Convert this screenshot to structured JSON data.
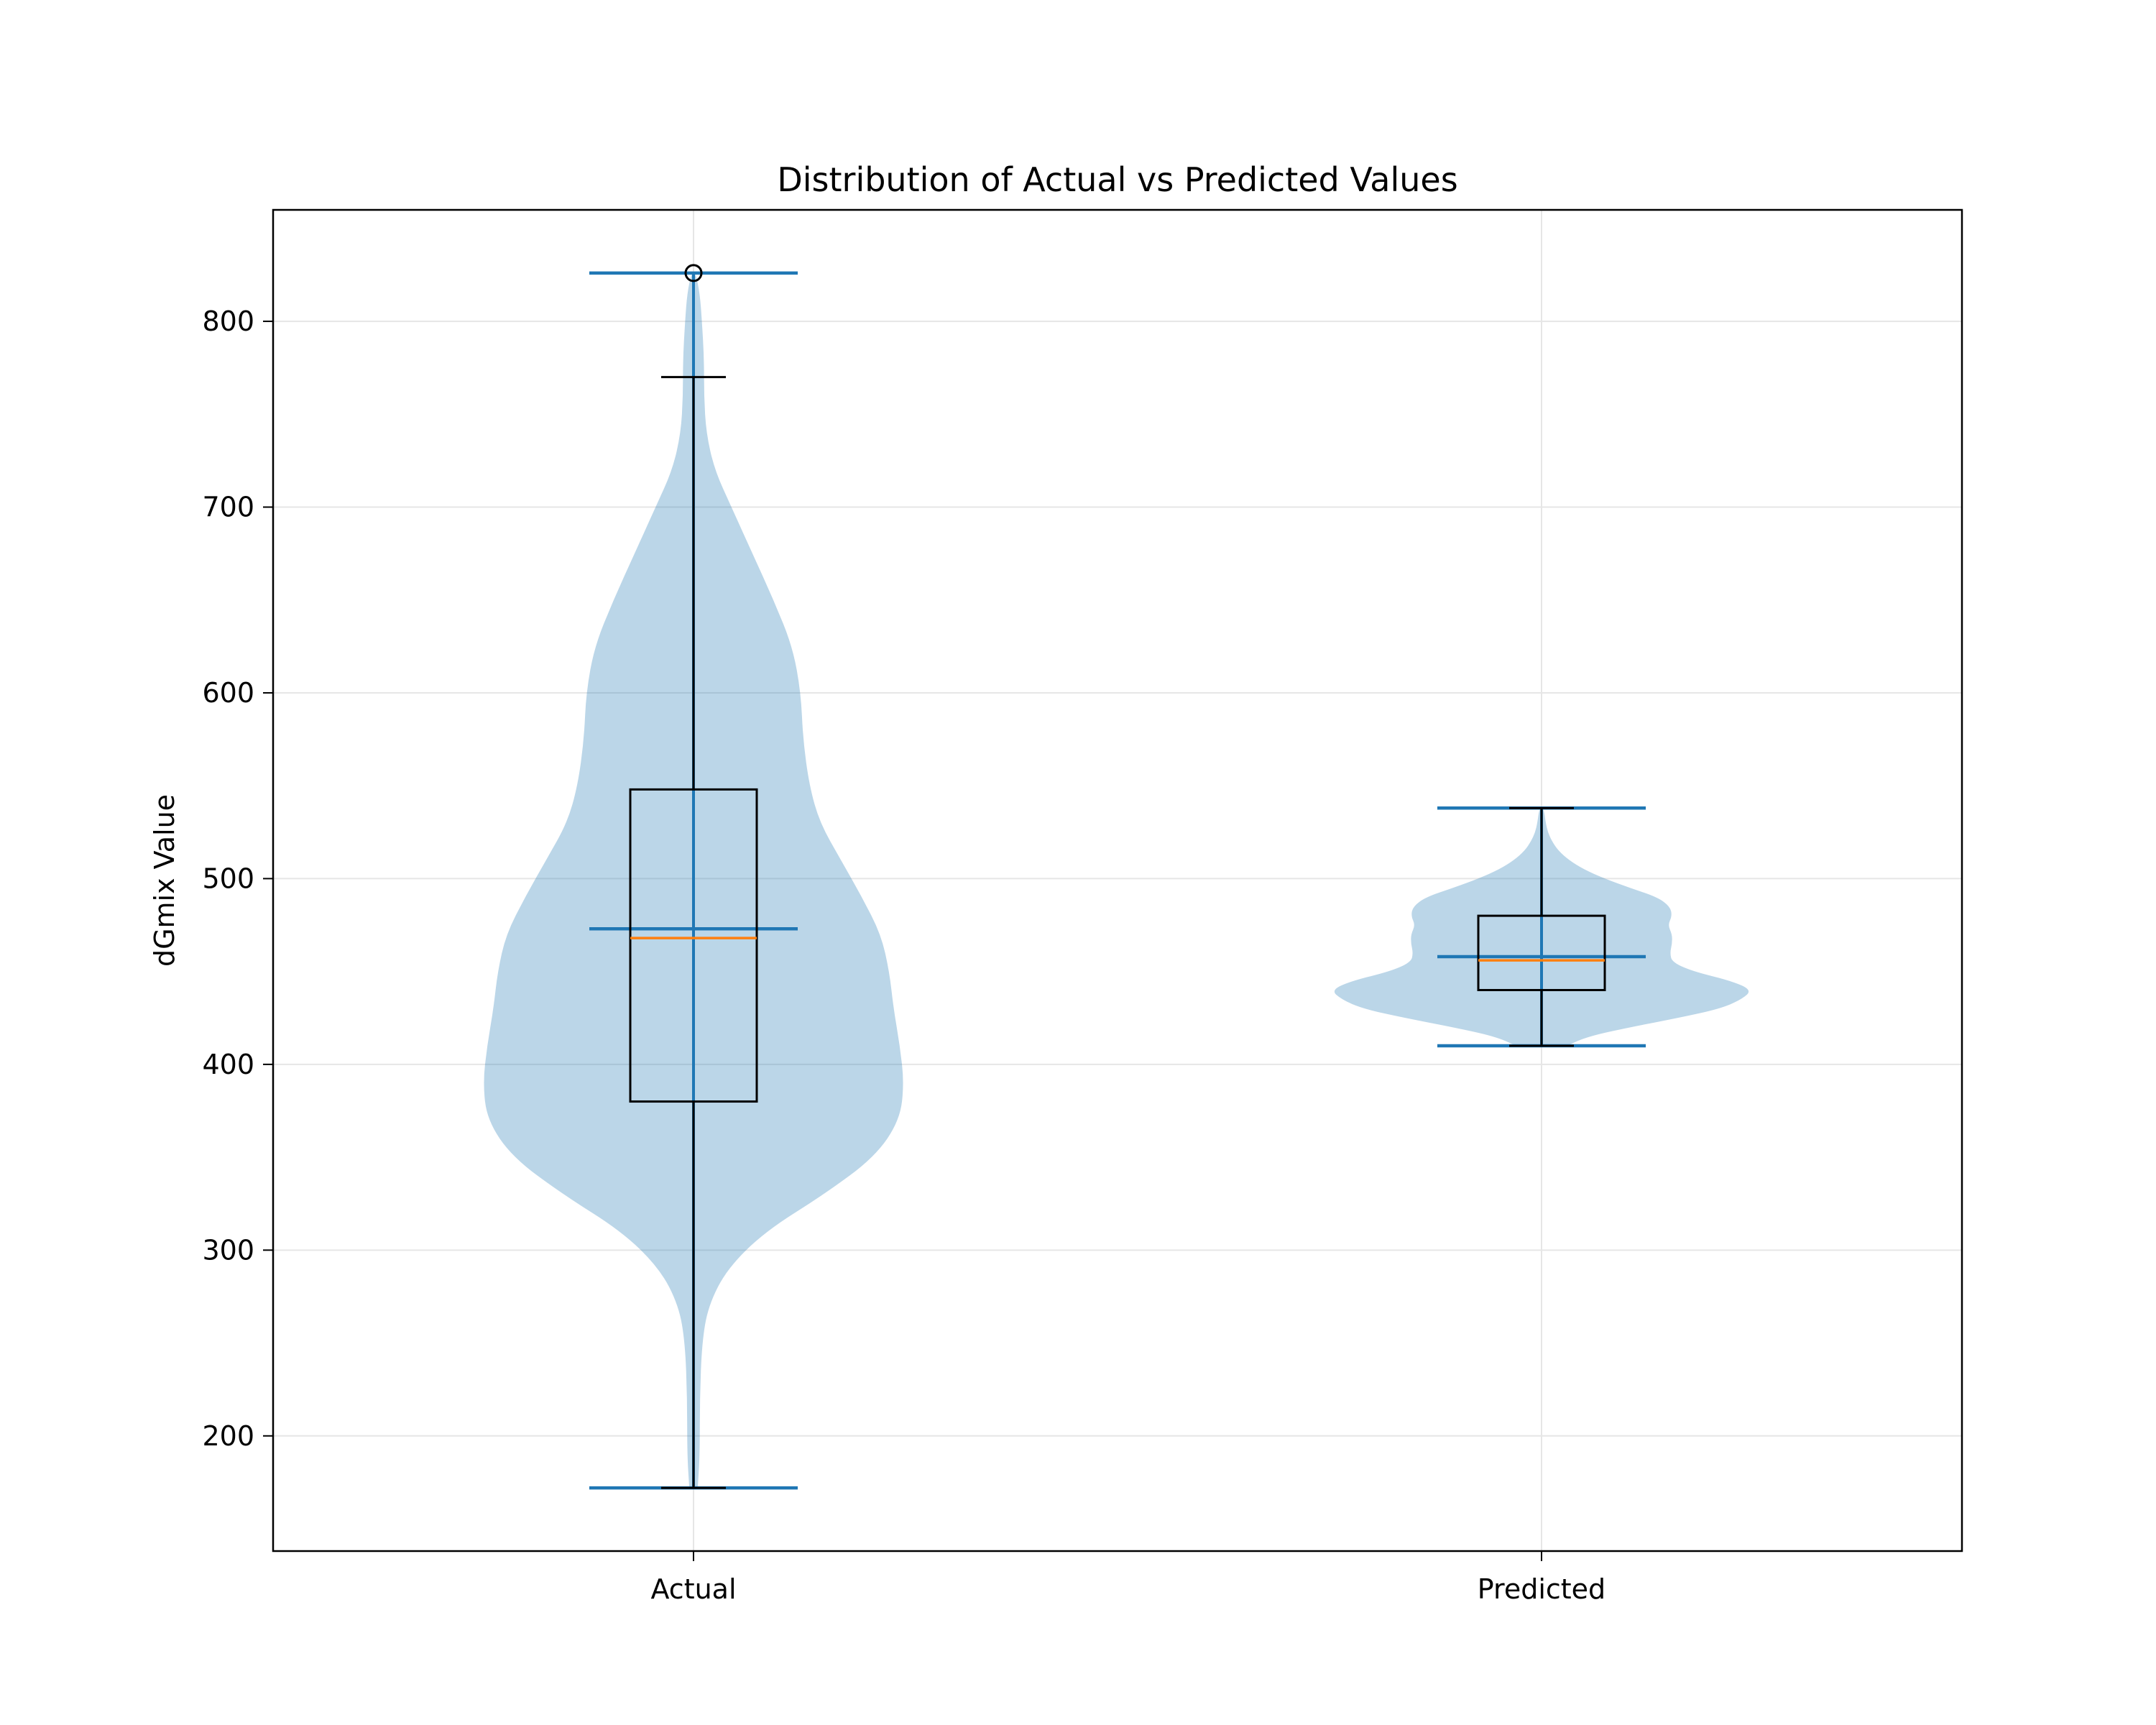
{
  "chart_data": {
    "type": "violin",
    "title": "Distribution of Actual vs Predicted Values",
    "xlabel": "",
    "ylabel": "dGmix Value",
    "ylim": [
      138,
      860
    ],
    "yticks": [
      200,
      300,
      400,
      500,
      600,
      700,
      800
    ],
    "grid": true,
    "categories": [
      "Actual",
      "Predicted"
    ],
    "colors": {
      "violin_fill": "#1f77b4",
      "violin_stats": "#1f77b4",
      "box_median": "#ff7f0e",
      "box_edge": "#000000",
      "grid": "#e6e6e6"
    },
    "series": [
      {
        "category": "Actual",
        "min": 172,
        "max": 826,
        "mean": 473,
        "median": 468,
        "q1": 380,
        "q3": 548,
        "whisker_low": 172,
        "whisker_high": 770,
        "outliers": [
          826
        ],
        "density": [
          [
            172,
            0.02
          ],
          [
            190,
            0.03
          ],
          [
            220,
            0.03
          ],
          [
            250,
            0.04
          ],
          [
            270,
            0.07
          ],
          [
            290,
            0.16
          ],
          [
            310,
            0.34
          ],
          [
            330,
            0.62
          ],
          [
            350,
            0.86
          ],
          [
            370,
            0.98
          ],
          [
            390,
            1.0
          ],
          [
            410,
            0.98
          ],
          [
            430,
            0.95
          ],
          [
            450,
            0.93
          ],
          [
            470,
            0.89
          ],
          [
            490,
            0.8
          ],
          [
            510,
            0.7
          ],
          [
            530,
            0.6
          ],
          [
            550,
            0.55
          ],
          [
            575,
            0.52
          ],
          [
            600,
            0.51
          ],
          [
            625,
            0.47
          ],
          [
            650,
            0.38
          ],
          [
            675,
            0.28
          ],
          [
            700,
            0.18
          ],
          [
            720,
            0.1
          ],
          [
            740,
            0.06
          ],
          [
            760,
            0.05
          ],
          [
            780,
            0.05
          ],
          [
            800,
            0.04
          ],
          [
            815,
            0.03
          ],
          [
            826,
            0.01
          ]
        ]
      },
      {
        "category": "Predicted",
        "min": 410,
        "max": 538,
        "mean": 458,
        "median": 456,
        "q1": 440,
        "q3": 480,
        "whisker_low": 410,
        "whisker_high": 538,
        "outliers": [],
        "density": [
          [
            410,
            0.12
          ],
          [
            415,
            0.22
          ],
          [
            420,
            0.42
          ],
          [
            425,
            0.65
          ],
          [
            430,
            0.85
          ],
          [
            435,
            0.95
          ],
          [
            440,
            1.0
          ],
          [
            445,
            0.9
          ],
          [
            450,
            0.72
          ],
          [
            455,
            0.62
          ],
          [
            460,
            0.61
          ],
          [
            465,
            0.62
          ],
          [
            470,
            0.62
          ],
          [
            475,
            0.6
          ],
          [
            480,
            0.62
          ],
          [
            485,
            0.61
          ],
          [
            490,
            0.55
          ],
          [
            495,
            0.42
          ],
          [
            500,
            0.3
          ],
          [
            505,
            0.2
          ],
          [
            510,
            0.13
          ],
          [
            515,
            0.08
          ],
          [
            520,
            0.05
          ],
          [
            525,
            0.03
          ],
          [
            530,
            0.02
          ],
          [
            538,
            0.01
          ]
        ]
      }
    ]
  }
}
